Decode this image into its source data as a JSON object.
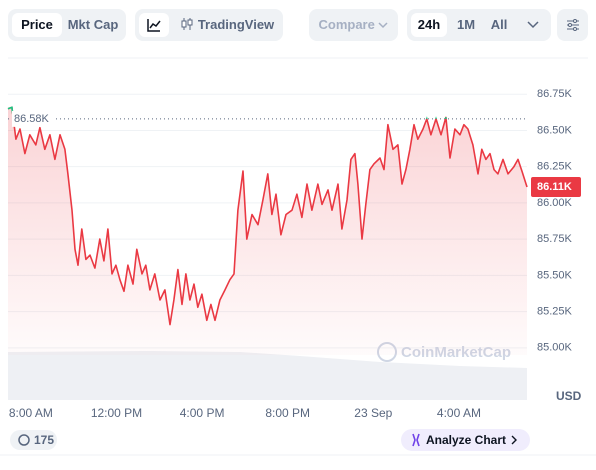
{
  "ui": {
    "tabs": [
      "Price",
      "Mkt Cap"
    ],
    "tradingview": "TradingView",
    "compare": "Compare",
    "ranges": [
      "24h",
      "1M",
      "All"
    ],
    "currency": "USD",
    "watermark": "CoinMarketCap",
    "count": "175",
    "analyze": "Analyze Chart"
  },
  "chart_data": {
    "type": "line",
    "x": [
      -1.07,
      -0.89,
      -0.7,
      -0.51,
      -0.28,
      -0.05,
      0.23,
      0.42,
      0.65,
      0.89,
      1.12,
      1.36,
      1.59,
      1.73,
      1.92,
      2.06,
      2.2,
      2.38,
      2.57,
      2.76,
      2.99,
      3.22,
      3.41,
      3.6,
      3.79,
      3.97,
      4.16,
      4.35,
      4.53,
      4.77,
      4.95,
      5.19,
      5.37,
      5.56,
      5.79,
      6.03,
      6.26,
      6.5,
      6.68,
      6.87,
      7.06,
      7.24,
      7.43,
      7.62,
      7.8,
      7.99,
      8.22,
      8.41,
      8.6,
      8.83,
      9.07,
      9.3,
      9.49,
      9.67,
      9.91,
      10.09,
      10.33,
      10.61,
      10.84,
      11.07,
      11.26,
      11.45,
      11.68,
      11.92,
      12.2,
      12.43,
      12.66,
      12.9,
      13.13,
      13.41,
      13.6,
      13.88,
      14.07,
      14.35,
      14.53,
      14.77,
      14.95,
      15.14,
      15.28,
      15.47,
      15.65,
      15.84,
      16.03,
      16.31,
      16.5,
      16.68,
      16.92,
      17.15,
      17.34,
      17.52,
      17.71,
      17.9,
      18.08,
      18.32,
      18.5,
      18.69,
      18.93,
      19.16,
      19.39,
      19.58,
      19.81,
      20.05,
      20.23,
      20.42,
      20.65,
      20.89,
      21.07,
      21.26,
      21.45,
      21.64,
      21.82,
      22.06,
      22.29,
      22.57,
      22.76,
      22.94,
      23.18
    ],
    "values": [
      86.65,
      86.66,
      86.44,
      86.51,
      86.34,
      86.47,
      86.4,
      86.52,
      86.37,
      86.47,
      86.3,
      86.47,
      86.37,
      86.2,
      85.95,
      85.68,
      85.57,
      85.82,
      85.61,
      85.64,
      85.55,
      85.75,
      85.6,
      85.82,
      85.51,
      85.57,
      85.47,
      85.39,
      85.57,
      85.44,
      85.68,
      85.51,
      85.57,
      85.4,
      85.51,
      85.33,
      85.4,
      85.16,
      85.33,
      85.54,
      85.3,
      85.51,
      85.33,
      85.44,
      85.28,
      85.37,
      85.19,
      85.3,
      85.19,
      85.33,
      85.4,
      85.47,
      85.51,
      85.95,
      86.22,
      85.75,
      85.92,
      85.85,
      86.02,
      86.2,
      85.92,
      86.06,
      85.78,
      85.92,
      85.95,
      86.06,
      85.9,
      86.13,
      85.95,
      86.13,
      85.99,
      86.09,
      85.95,
      86.13,
      85.82,
      86.02,
      86.3,
      86.34,
      86.13,
      85.75,
      85.99,
      86.23,
      86.27,
      86.31,
      86.23,
      86.54,
      86.37,
      86.4,
      86.13,
      86.23,
      86.37,
      86.54,
      86.44,
      86.51,
      86.58,
      86.47,
      86.58,
      86.47,
      86.59,
      86.31,
      86.51,
      86.47,
      86.54,
      86.51,
      86.4,
      86.2,
      86.37,
      86.3,
      86.34,
      86.23,
      86.2,
      86.3,
      86.2,
      86.25,
      86.3,
      86.22,
      86.11
    ],
    "color": "#ea3943",
    "up_color": "#16c784",
    "xlim": [
      -1.07,
      23.18
    ],
    "xticks": [
      {
        "value": 0,
        "label": "8:00 AM"
      },
      {
        "value": 4,
        "label": "12:00 PM"
      },
      {
        "value": 8,
        "label": "4:00 PM"
      },
      {
        "value": 12,
        "label": "8:00 PM"
      },
      {
        "value": 16,
        "label": "23 Sep"
      },
      {
        "value": 20,
        "label": "4:00 AM"
      }
    ],
    "ylim": [
      84.64,
      87.0
    ],
    "yticks": [
      {
        "value": 85.0,
        "label": "85.00K"
      },
      {
        "value": 85.25,
        "label": "85.25K"
      },
      {
        "value": 85.5,
        "label": "85.50K"
      },
      {
        "value": 85.75,
        "label": "85.75K"
      },
      {
        "value": 86.0,
        "label": "86.00K"
      },
      {
        "value": 86.25,
        "label": "86.25K"
      },
      {
        "value": 86.5,
        "label": "86.50K"
      },
      {
        "value": 86.75,
        "label": "86.75K"
      }
    ],
    "grid": true,
    "reference": {
      "value": 86.58,
      "label": "86.58K"
    },
    "current": {
      "value": 86.11,
      "label": "86.11K"
    }
  }
}
